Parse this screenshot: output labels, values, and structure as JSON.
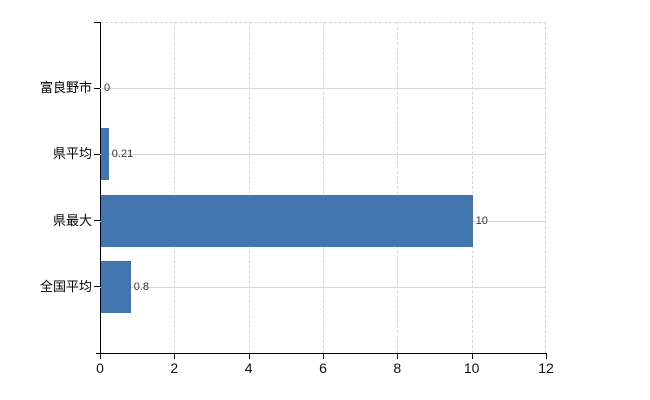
{
  "chart_data": {
    "type": "bar",
    "orientation": "horizontal",
    "title": "",
    "xlabel": "",
    "ylabel": "",
    "categories": [
      "富良野市",
      "県平均",
      "県最大",
      "全国平均"
    ],
    "values": [
      0,
      0.21,
      10,
      0.8
    ],
    "value_labels": [
      "0",
      "0.21",
      "10",
      "0.8"
    ],
    "x_ticks": [
      0,
      2,
      4,
      6,
      8,
      10,
      12
    ],
    "x_tick_labels": [
      "0",
      "2",
      "4",
      "6",
      "8",
      "10",
      "12"
    ],
    "xlim": [
      0,
      12
    ],
    "grid": true,
    "legend": "none",
    "bar_color": "#4274b0",
    "axis_color": "#000000",
    "grid_color": "#d8d8d8",
    "value_label_color": "#333333",
    "background_color": "#ffffff"
  }
}
